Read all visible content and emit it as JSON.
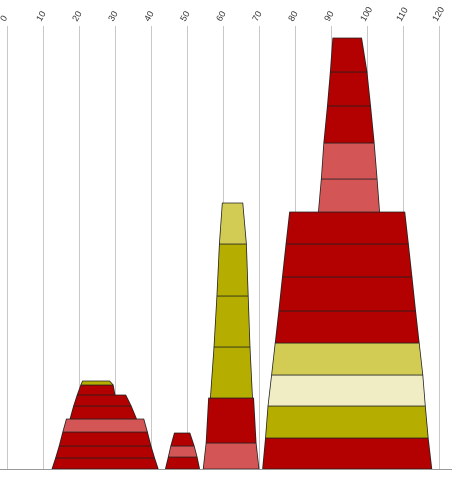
{
  "chart_data": {
    "type": "bar",
    "title": "",
    "xlabel": "",
    "ylabel": "",
    "x_ticks": [
      "0",
      "10",
      "20",
      "30",
      "40",
      "50",
      "60",
      "70",
      "80",
      "90",
      "100",
      "110",
      "120"
    ],
    "xlim": [
      0,
      120
    ],
    "grid": true,
    "colors": {
      "dark_red": "#b30000",
      "light_red": "#d45555",
      "olive": "#b5ae00",
      "light_olive": "#d2cc55",
      "cream": "#f0ecc4",
      "outline": "#222222",
      "grid": "#c8c8c8"
    },
    "shapes": [
      {
        "name": "stack-1",
        "segments": [
          {
            "bottom_x0": 12.5,
            "bottom_x1": 42.0,
            "top_x0": 13.5,
            "top_x1": 41.0,
            "color": "dark_red"
          },
          {
            "bottom_x0": 13.5,
            "bottom_x1": 41.0,
            "top_x0": 14.5,
            "top_x1": 40.0,
            "color": "dark_red"
          },
          {
            "bottom_x0": 14.5,
            "bottom_x1": 40.0,
            "top_x0": 15.5,
            "top_x1": 39.0,
            "color": "dark_red"
          },
          {
            "bottom_x0": 15.5,
            "bottom_x1": 39.0,
            "top_x0": 16.5,
            "top_x1": 38.0,
            "color": "light_red"
          },
          {
            "bottom_x0": 17.5,
            "bottom_x1": 36.0,
            "top_x0": 18.5,
            "top_x1": 34.5,
            "color": "dark_red"
          },
          {
            "bottom_x0": 18.5,
            "bottom_x1": 34.5,
            "top_x0": 19.5,
            "top_x1": 33.0,
            "color": "dark_red"
          },
          {
            "bottom_x0": 19.5,
            "bottom_x1": 30.0,
            "top_x0": 20.5,
            "top_x1": 29.5,
            "color": "dark_red"
          },
          {
            "bottom_x0": 20.5,
            "bottom_x1": 29.5,
            "top_x0": 21.0,
            "top_x1": 28.5,
            "color": "olive"
          }
        ]
      },
      {
        "name": "stack-2",
        "segments": [
          {
            "bottom_x0": 44.0,
            "bottom_x1": 53.5,
            "top_x0": 44.8,
            "top_x1": 52.8,
            "color": "dark_red"
          },
          {
            "bottom_x0": 44.8,
            "bottom_x1": 52.8,
            "top_x0": 45.5,
            "top_x1": 52.0,
            "color": "light_red"
          },
          {
            "bottom_x0": 45.5,
            "bottom_x1": 52.0,
            "top_x0": 46.5,
            "top_x1": 50.8,
            "color": "dark_red"
          }
        ]
      },
      {
        "name": "stack-3",
        "segments": [
          {
            "bottom_x0": 54.5,
            "bottom_x1": 70.0,
            "top_x0": 55.3,
            "top_x1": 69.2,
            "color": "light_red"
          },
          {
            "bottom_x0": 55.3,
            "bottom_x1": 69.2,
            "top_x0": 56.0,
            "top_x1": 68.5,
            "color": "dark_red"
          },
          {
            "bottom_x0": 56.5,
            "bottom_x1": 68.2,
            "top_x0": 57.5,
            "top_x1": 67.5,
            "color": "olive"
          },
          {
            "bottom_x0": 57.5,
            "bottom_x1": 67.5,
            "top_x0": 58.3,
            "top_x1": 67.0,
            "color": "olive"
          },
          {
            "bottom_x0": 58.3,
            "bottom_x1": 67.0,
            "top_x0": 59.0,
            "top_x1": 66.5,
            "color": "olive"
          },
          {
            "bottom_x0": 59.0,
            "bottom_x1": 66.5,
            "top_x0": 59.8,
            "top_x1": 65.5,
            "color": "light_olive"
          }
        ]
      },
      {
        "name": "stack-4",
        "segments": [
          {
            "bottom_x0": 71.0,
            "bottom_x1": 118.0,
            "top_x0": 71.8,
            "top_x1": 117.0,
            "color": "dark_red"
          },
          {
            "bottom_x0": 71.8,
            "bottom_x1": 117.0,
            "top_x0": 72.5,
            "top_x1": 116.2,
            "color": "olive"
          },
          {
            "bottom_x0": 72.5,
            "bottom_x1": 116.2,
            "top_x0": 73.5,
            "top_x1": 115.5,
            "color": "cream"
          },
          {
            "bottom_x0": 73.5,
            "bottom_x1": 115.5,
            "top_x0": 74.5,
            "top_x1": 114.5,
            "color": "light_olive"
          },
          {
            "bottom_x0": 74.5,
            "bottom_x1": 114.5,
            "top_x0": 75.5,
            "top_x1": 113.5,
            "color": "dark_red"
          },
          {
            "bottom_x0": 75.5,
            "bottom_x1": 113.5,
            "top_x0": 76.5,
            "top_x1": 112.5,
            "color": "dark_red"
          },
          {
            "bottom_x0": 76.5,
            "bottom_x1": 112.5,
            "top_x0": 77.5,
            "top_x1": 111.5,
            "color": "dark_red"
          },
          {
            "bottom_x0": 77.5,
            "bottom_x1": 111.5,
            "top_x0": 78.5,
            "top_x1": 110.5,
            "color": "dark_red"
          },
          {
            "bottom_x0": 86.5,
            "bottom_x1": 103.5,
            "top_x0": 87.3,
            "top_x1": 102.8,
            "color": "light_red"
          },
          {
            "bottom_x0": 87.3,
            "bottom_x1": 102.8,
            "top_x0": 88.0,
            "top_x1": 102.0,
            "color": "light_red"
          },
          {
            "bottom_x0": 88.0,
            "bottom_x1": 102.0,
            "top_x0": 89.0,
            "top_x1": 101.0,
            "color": "dark_red"
          },
          {
            "bottom_x0": 89.0,
            "bottom_x1": 101.0,
            "top_x0": 89.8,
            "top_x1": 100.0,
            "color": "dark_red"
          },
          {
            "bottom_x0": 89.8,
            "bottom_x1": 100.0,
            "top_x0": 90.5,
            "top_x1": 98.5,
            "color": "dark_red"
          }
        ]
      }
    ]
  }
}
